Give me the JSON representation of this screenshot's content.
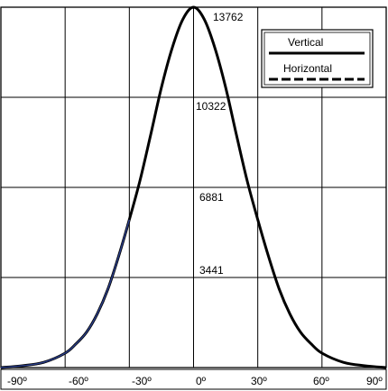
{
  "chart_data": {
    "type": "line",
    "title": "",
    "xlabel": "",
    "ylabel": "",
    "xlim": [
      -90,
      90
    ],
    "ylim": [
      0,
      13762
    ],
    "x_ticks": [
      -90,
      -60,
      -30,
      0,
      30,
      60,
      90
    ],
    "x_tick_labels": [
      "-90º",
      "-60º",
      "-30º",
      "0º",
      "30º",
      "60º",
      "90º"
    ],
    "y_value_labels": [
      {
        "value": 13762,
        "label": "13762"
      },
      {
        "value": 10322,
        "label": "10322"
      },
      {
        "value": 6881,
        "label": "6881"
      },
      {
        "value": 3441,
        "label": "3441"
      }
    ],
    "grid": true,
    "legend_position": "top-right",
    "series": [
      {
        "name": "Vertical",
        "style": "solid",
        "color": "#000000",
        "x": [
          -90,
          -80,
          -70,
          -60,
          -55,
          -50,
          -45,
          -40,
          -35,
          -30,
          -25,
          -20,
          -15,
          -10,
          -5,
          0,
          5,
          10,
          15,
          20,
          25,
          30,
          35,
          40,
          45,
          50,
          55,
          60,
          70,
          80,
          90
        ],
        "y": [
          0,
          70,
          200,
          550,
          900,
          1350,
          2050,
          3000,
          4250,
          5650,
          7150,
          8900,
          10700,
          12200,
          13300,
          13762,
          13300,
          12200,
          10700,
          8900,
          7150,
          5650,
          4250,
          3000,
          2050,
          1350,
          900,
          550,
          200,
          70,
          0
        ]
      },
      {
        "name": "Horizontal",
        "style": "dashed",
        "color": "#000000",
        "x": [
          -90,
          -80,
          -70,
          -60,
          -55,
          -50,
          -45,
          -40,
          -35,
          -30,
          -25,
          -20,
          -15,
          -10,
          -5,
          0,
          5,
          10,
          15,
          20,
          25,
          30,
          35,
          40,
          45,
          50,
          55,
          60,
          70,
          80,
          90
        ],
        "y": [
          0,
          70,
          200,
          550,
          900,
          1350,
          2050,
          3000,
          4250,
          5650,
          7150,
          8900,
          10700,
          12200,
          13300,
          13762,
          13300,
          12200,
          10700,
          8900,
          7150,
          5650,
          4250,
          3000,
          2050,
          1350,
          900,
          550,
          200,
          70,
          0
        ]
      }
    ],
    "accent_colors": {
      "left_tail": "#2b3f8c",
      "line": "#000000"
    }
  }
}
